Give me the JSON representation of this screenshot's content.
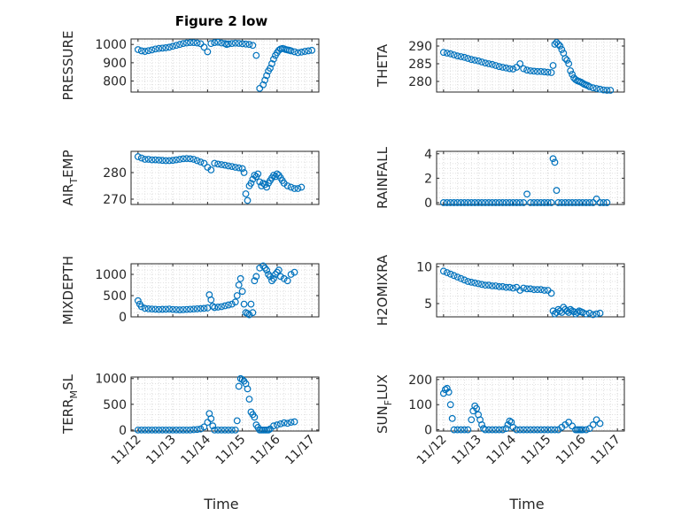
{
  "figure_title": "Figure 2 low",
  "x_axis_label": "Time",
  "marker_color": "#0072BD",
  "chart_data": [
    {
      "type": "scatter",
      "ylabel_main": "PRESSURE",
      "ylabel_sub": "",
      "yticks": [
        800,
        900,
        1000
      ],
      "ylim": [
        740,
        1030
      ],
      "x_days": [
        0,
        0.1,
        0.2,
        0.3,
        0.4,
        0.5,
        0.6,
        0.7,
        0.8,
        0.9,
        1.0,
        1.1,
        1.2,
        1.3,
        1.4,
        1.5,
        1.6,
        1.7,
        1.8,
        1.9,
        2.0,
        2.1,
        2.2,
        2.3,
        2.4,
        2.5,
        2.55,
        2.6,
        2.7,
        2.8,
        2.9,
        3.0,
        3.1,
        3.2,
        3.3,
        3.4,
        3.5,
        3.6,
        3.65,
        3.7,
        3.75,
        3.8,
        3.85,
        3.9,
        3.95,
        4.0,
        4.05,
        4.1,
        4.15,
        4.2,
        4.25,
        4.3,
        4.35,
        4.4,
        4.5,
        4.6,
        4.7,
        4.8,
        4.9,
        5.0
      ],
      "y": [
        972,
        965,
        962,
        966,
        970,
        975,
        978,
        980,
        982,
        985,
        990,
        995,
        1000,
        1005,
        1008,
        1010,
        1010,
        1008,
        1004,
        985,
        960,
        1005,
        1010,
        1012,
        1008,
        1005,
        1000,
        1003,
        1005,
        1007,
        1006,
        1004,
        1002,
        1000,
        995,
        940,
        760,
        780,
        805,
        830,
        855,
        870,
        895,
        920,
        940,
        955,
        968,
        975,
        978,
        976,
        972,
        970,
        968,
        965,
        960,
        955,
        958,
        962,
        965,
        968
      ],
      "xtick_labels": [
        "11/12",
        "11/13",
        "11/14",
        "11/15",
        "11/16",
        "11/17"
      ]
    },
    {
      "type": "scatter",
      "ylabel_main": "THETA",
      "ylabel_sub": "",
      "yticks": [
        280,
        285,
        290
      ],
      "ylim": [
        277,
        292
      ],
      "x_days": [
        0,
        0.1,
        0.2,
        0.3,
        0.4,
        0.5,
        0.6,
        0.7,
        0.8,
        0.9,
        1.0,
        1.1,
        1.2,
        1.3,
        1.4,
        1.5,
        1.6,
        1.7,
        1.8,
        1.9,
        2.0,
        2.1,
        2.2,
        2.3,
        2.4,
        2.5,
        2.6,
        2.7,
        2.8,
        2.9,
        3.0,
        3.1,
        3.15,
        3.2,
        3.25,
        3.3,
        3.35,
        3.4,
        3.45,
        3.5,
        3.55,
        3.6,
        3.65,
        3.7,
        3.75,
        3.8,
        3.85,
        3.9,
        3.95,
        4.0,
        4.05,
        4.1,
        4.15,
        4.2,
        4.3,
        4.4,
        4.5,
        4.6,
        4.7,
        4.8
      ],
      "y": [
        288.2,
        288.0,
        287.8,
        287.5,
        287.2,
        287.0,
        286.8,
        286.5,
        286.2,
        286.0,
        285.8,
        285.5,
        285.2,
        285.0,
        284.8,
        284.5,
        284.2,
        284.0,
        283.8,
        283.6,
        283.5,
        284.0,
        285.0,
        283.6,
        283.2,
        283.0,
        282.9,
        282.8,
        282.8,
        282.7,
        282.6,
        282.5,
        284.5,
        290.5,
        291.0,
        290.5,
        290.0,
        289.0,
        288.0,
        286.5,
        286.0,
        285.0,
        283.0,
        282.0,
        281.0,
        280.5,
        280.2,
        280.0,
        279.8,
        279.5,
        279.2,
        279.0,
        278.8,
        278.5,
        278.2,
        278.0,
        277.8,
        277.6,
        277.5,
        277.5
      ],
      "xtick_labels": [
        "11/12",
        "11/13",
        "11/14",
        "11/15",
        "11/16",
        "11/17"
      ]
    },
    {
      "type": "scatter",
      "ylabel_main": "AIR",
      "ylabel_sub": "T",
      "ylabel_tail": "EMP",
      "sub_dir": "down",
      "yticks": [
        270,
        280
      ],
      "ylim": [
        268,
        288
      ],
      "x_days": [
        0,
        0.1,
        0.2,
        0.3,
        0.4,
        0.5,
        0.6,
        0.7,
        0.8,
        0.9,
        1.0,
        1.1,
        1.2,
        1.3,
        1.4,
        1.5,
        1.6,
        1.7,
        1.8,
        1.9,
        2.0,
        2.1,
        2.2,
        2.3,
        2.4,
        2.5,
        2.6,
        2.7,
        2.8,
        2.9,
        3.0,
        3.05,
        3.1,
        3.15,
        3.2,
        3.25,
        3.3,
        3.35,
        3.4,
        3.45,
        3.5,
        3.55,
        3.6,
        3.65,
        3.7,
        3.75,
        3.8,
        3.85,
        3.9,
        3.95,
        4.0,
        4.05,
        4.1,
        4.15,
        4.2,
        4.3,
        4.4,
        4.5,
        4.6,
        4.7
      ],
      "y": [
        286.0,
        285.5,
        285.0,
        285.0,
        284.8,
        284.8,
        284.7,
        284.6,
        284.5,
        284.5,
        284.6,
        284.8,
        285.0,
        285.2,
        285.3,
        285.2,
        285.0,
        284.5,
        284.0,
        283.5,
        282.0,
        281.0,
        283.5,
        283.2,
        283.0,
        282.8,
        282.5,
        282.3,
        282.0,
        281.8,
        281.5,
        280.0,
        272.0,
        269.5,
        275.0,
        276.0,
        277.5,
        279.0,
        278.5,
        279.5,
        276.5,
        275.0,
        276.0,
        275.5,
        274.5,
        276.0,
        277.0,
        278.0,
        279.0,
        278.5,
        279.5,
        279.0,
        278.0,
        277.0,
        276.0,
        275.0,
        274.5,
        274.0,
        274.0,
        274.5
      ],
      "xtick_labels": [
        "11/12",
        "11/13",
        "11/14",
        "11/15",
        "11/16",
        "11/17"
      ]
    },
    {
      "type": "scatter",
      "ylabel_main": "RAINFALL",
      "ylabel_sub": "",
      "yticks": [
        0,
        2,
        4
      ],
      "ylim": [
        -0.15,
        4.2
      ],
      "x_days": [
        0,
        0.1,
        0.2,
        0.3,
        0.4,
        0.5,
        0.6,
        0.7,
        0.8,
        0.9,
        1.0,
        1.1,
        1.2,
        1.3,
        1.4,
        1.5,
        1.6,
        1.7,
        1.8,
        1.9,
        2.0,
        2.1,
        2.2,
        2.3,
        2.4,
        2.5,
        2.6,
        2.7,
        2.8,
        2.9,
        3.0,
        3.1,
        3.15,
        3.2,
        3.25,
        3.3,
        3.4,
        3.5,
        3.6,
        3.7,
        3.8,
        3.9,
        4.0,
        4.1,
        4.2,
        4.3,
        4.4,
        4.5,
        4.6,
        4.7
      ],
      "y": [
        0,
        0,
        0,
        0,
        0,
        0,
        0,
        0,
        0,
        0,
        0,
        0,
        0,
        0,
        0,
        0,
        0,
        0,
        0,
        0,
        0,
        0,
        0,
        0,
        0.7,
        0,
        0,
        0,
        0,
        0,
        0,
        0,
        3.6,
        3.3,
        1.0,
        0,
        0,
        0,
        0,
        0,
        0,
        0,
        0,
        0,
        0,
        0,
        0.3,
        0,
        0,
        0
      ],
      "xtick_labels": [
        "11/12",
        "11/13",
        "11/14",
        "11/15",
        "11/16",
        "11/17"
      ]
    },
    {
      "type": "scatter",
      "ylabel_main": "MIXDEPTH",
      "ylabel_sub": "",
      "yticks": [
        0,
        500,
        1000
      ],
      "ylim": [
        0,
        1250
      ],
      "x_days": [
        0,
        0.05,
        0.1,
        0.2,
        0.3,
        0.4,
        0.5,
        0.6,
        0.7,
        0.8,
        0.9,
        1.0,
        1.1,
        1.2,
        1.3,
        1.4,
        1.5,
        1.6,
        1.7,
        1.8,
        1.9,
        2.0,
        2.05,
        2.1,
        2.15,
        2.2,
        2.3,
        2.4,
        2.5,
        2.6,
        2.7,
        2.8,
        2.85,
        2.9,
        2.95,
        3.0,
        3.05,
        3.1,
        3.15,
        3.2,
        3.25,
        3.3,
        3.35,
        3.4,
        3.5,
        3.6,
        3.65,
        3.7,
        3.75,
        3.8,
        3.85,
        3.9,
        3.95,
        4.0,
        4.05,
        4.1,
        4.2,
        4.3,
        4.4,
        4.5
      ],
      "y": [
        380,
        300,
        240,
        200,
        190,
        185,
        180,
        175,
        178,
        180,
        185,
        175,
        170,
        165,
        170,
        175,
        180,
        185,
        190,
        195,
        200,
        210,
        520,
        400,
        250,
        220,
        230,
        240,
        260,
        280,
        300,
        350,
        500,
        750,
        900,
        600,
        300,
        100,
        80,
        50,
        300,
        100,
        850,
        950,
        1150,
        1200,
        1150,
        1100,
        1000,
        950,
        850,
        900,
        1000,
        1050,
        1100,
        950,
        900,
        850,
        1000,
        1050
      ],
      "xtick_labels": [
        "11/12",
        "11/13",
        "11/14",
        "11/15",
        "11/16",
        "11/17"
      ]
    },
    {
      "type": "scatter",
      "ylabel_main": "H2OMIXRA",
      "ylabel_sub": "",
      "yticks": [
        5,
        10
      ],
      "ylim": [
        3.2,
        10.4
      ],
      "x_days": [
        0,
        0.1,
        0.2,
        0.3,
        0.4,
        0.5,
        0.6,
        0.7,
        0.8,
        0.9,
        1.0,
        1.1,
        1.2,
        1.3,
        1.4,
        1.5,
        1.6,
        1.7,
        1.8,
        1.9,
        2.0,
        2.1,
        2.2,
        2.3,
        2.4,
        2.5,
        2.6,
        2.7,
        2.8,
        2.9,
        3.0,
        3.1,
        3.15,
        3.2,
        3.25,
        3.3,
        3.35,
        3.4,
        3.45,
        3.5,
        3.55,
        3.6,
        3.65,
        3.7,
        3.75,
        3.8,
        3.85,
        3.9,
        3.95,
        4.0,
        4.1,
        4.2,
        4.3,
        4.4,
        4.5
      ],
      "y": [
        9.4,
        9.2,
        9.0,
        8.8,
        8.6,
        8.4,
        8.2,
        8.0,
        7.9,
        7.8,
        7.7,
        7.6,
        7.5,
        7.5,
        7.4,
        7.4,
        7.3,
        7.3,
        7.2,
        7.2,
        7.1,
        7.2,
        6.8,
        7.1,
        7.0,
        7.0,
        6.9,
        6.9,
        6.9,
        6.8,
        6.8,
        6.4,
        4.0,
        3.6,
        3.8,
        4.2,
        4.0,
        3.8,
        4.5,
        4.2,
        4.0,
        3.8,
        4.2,
        4.0,
        3.9,
        3.6,
        3.8,
        4.0,
        3.9,
        3.8,
        3.6,
        3.7,
        3.5,
        3.6,
        3.7
      ],
      "xtick_labels": [
        "11/12",
        "11/13",
        "11/14",
        "11/15",
        "11/16",
        "11/17"
      ]
    },
    {
      "type": "scatter",
      "ylabel_main": "TERR",
      "ylabel_sub": "M",
      "ylabel_tail": "SL",
      "sub_dir": "down",
      "yticks": [
        0,
        500,
        1000
      ],
      "ylim": [
        -20,
        1030
      ],
      "x_days": [
        0,
        0.1,
        0.2,
        0.3,
        0.4,
        0.5,
        0.6,
        0.7,
        0.8,
        0.9,
        1.0,
        1.1,
        1.2,
        1.3,
        1.4,
        1.5,
        1.6,
        1.7,
        1.8,
        1.9,
        2.0,
        2.05,
        2.1,
        2.15,
        2.2,
        2.3,
        2.4,
        2.5,
        2.6,
        2.7,
        2.8,
        2.85,
        2.9,
        2.95,
        3.0,
        3.05,
        3.1,
        3.15,
        3.2,
        3.25,
        3.3,
        3.35,
        3.4,
        3.45,
        3.5,
        3.55,
        3.6,
        3.65,
        3.7,
        3.75,
        3.8,
        3.9,
        4.0,
        4.1,
        4.2,
        4.3,
        4.4,
        4.5
      ],
      "y": [
        0,
        0,
        0,
        0,
        0,
        0,
        0,
        0,
        0,
        0,
        0,
        0,
        0,
        0,
        0,
        0,
        5,
        10,
        20,
        60,
        150,
        320,
        220,
        80,
        0,
        0,
        0,
        0,
        0,
        0,
        0,
        180,
        850,
        1000,
        980,
        950,
        900,
        800,
        600,
        350,
        300,
        250,
        100,
        50,
        0,
        0,
        0,
        0,
        0,
        0,
        20,
        80,
        100,
        120,
        140,
        130,
        150,
        160
      ],
      "xtick_labels": [
        "11/12",
        "11/13",
        "11/14",
        "11/15",
        "11/16",
        "11/17"
      ]
    },
    {
      "type": "scatter",
      "ylabel_main": "SUN",
      "ylabel_sub": "F",
      "ylabel_tail": "LUX",
      "sub_dir": "down",
      "yticks": [
        0,
        100,
        200
      ],
      "ylim": [
        -5,
        210
      ],
      "x_days": [
        0,
        0.05,
        0.1,
        0.15,
        0.2,
        0.25,
        0.3,
        0.4,
        0.5,
        0.6,
        0.7,
        0.8,
        0.85,
        0.9,
        0.95,
        1.0,
        1.05,
        1.1,
        1.15,
        1.2,
        1.3,
        1.4,
        1.5,
        1.6,
        1.7,
        1.8,
        1.85,
        1.9,
        1.95,
        2.0,
        2.1,
        2.2,
        2.3,
        2.4,
        2.5,
        2.6,
        2.7,
        2.8,
        2.9,
        3.0,
        3.1,
        3.2,
        3.3,
        3.4,
        3.5,
        3.6,
        3.7,
        3.8,
        3.85,
        3.9,
        3.95,
        4.0,
        4.1,
        4.2,
        4.3,
        4.4,
        4.5
      ],
      "y": [
        145,
        160,
        165,
        150,
        100,
        45,
        0,
        0,
        0,
        0,
        0,
        40,
        75,
        95,
        85,
        60,
        40,
        20,
        5,
        0,
        0,
        0,
        0,
        0,
        0,
        5,
        20,
        35,
        30,
        10,
        0,
        0,
        0,
        0,
        0,
        0,
        0,
        0,
        0,
        0,
        0,
        0,
        0,
        10,
        20,
        30,
        15,
        0,
        0,
        0,
        0,
        0,
        0,
        5,
        20,
        40,
        25
      ],
      "xtick_labels": [
        "11/12",
        "11/13",
        "11/14",
        "11/15",
        "11/16",
        "11/17"
      ]
    }
  ]
}
